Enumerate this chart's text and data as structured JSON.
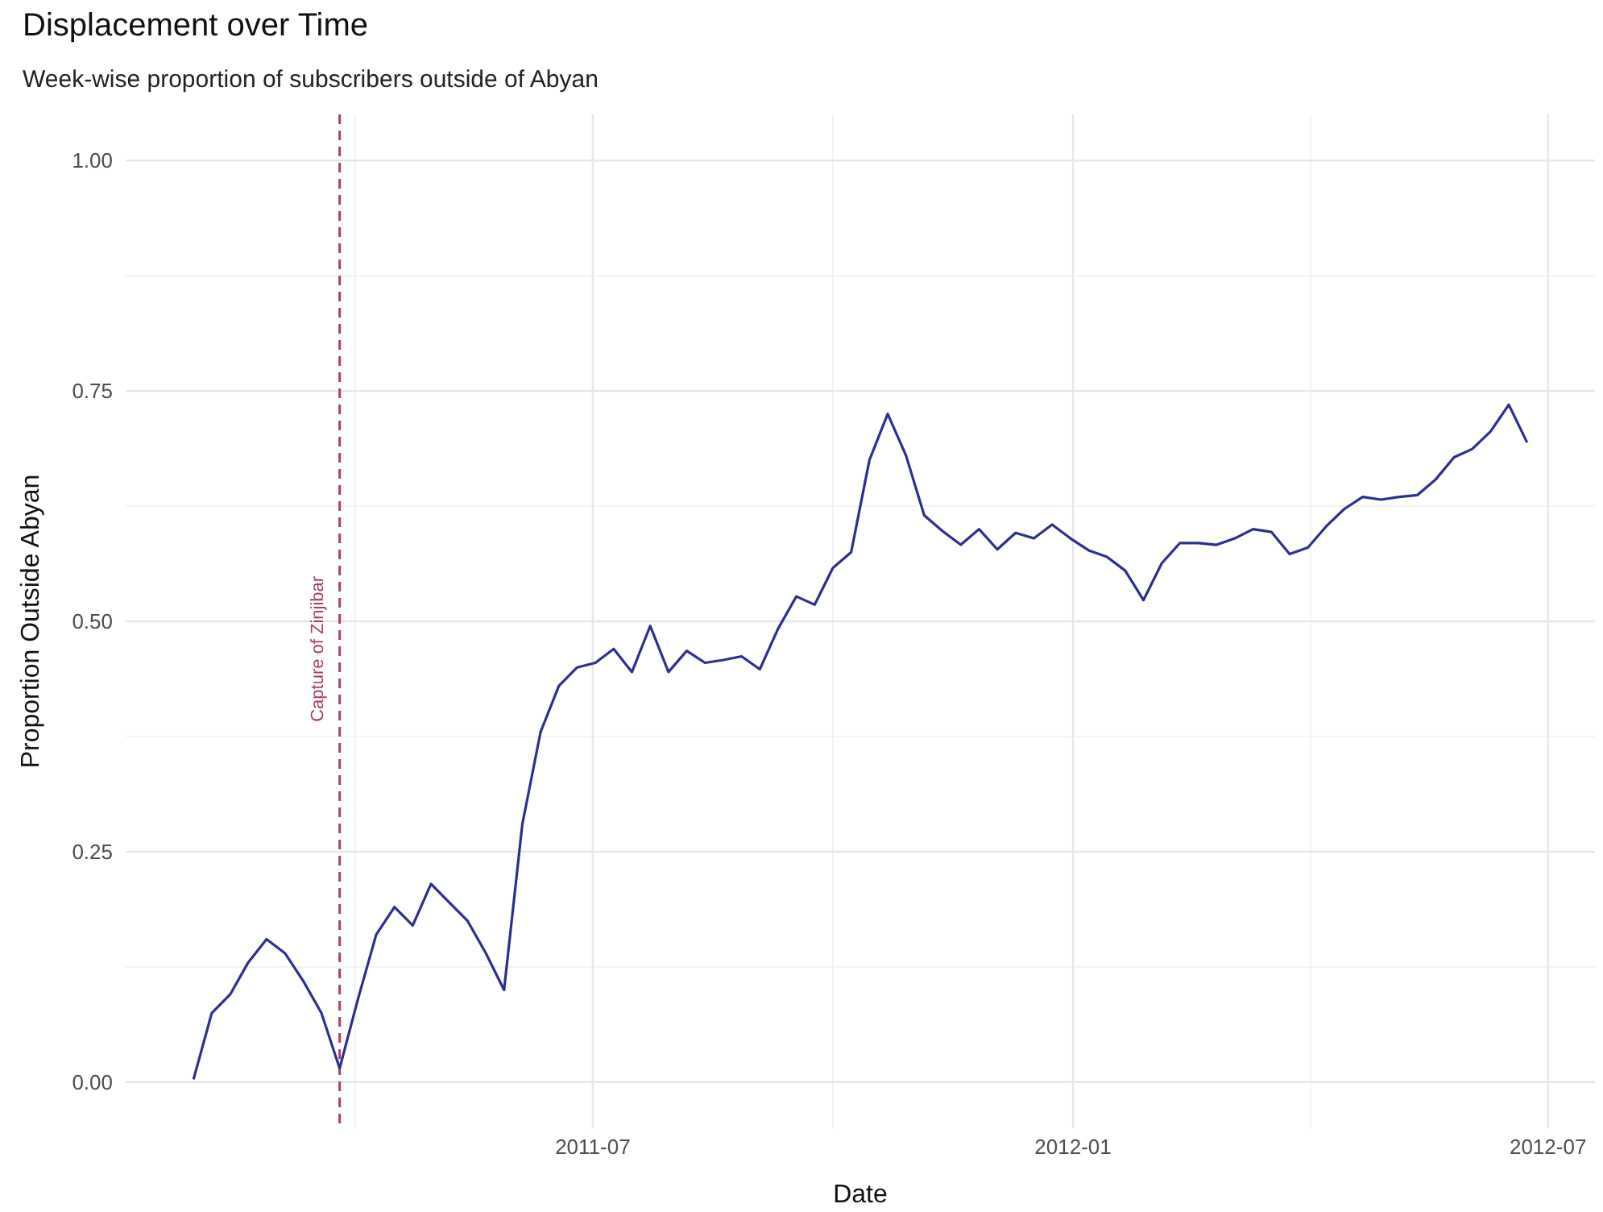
{
  "chart_data": {
    "type": "line",
    "title": "Displacement over Time",
    "subtitle": "Week-wise proportion of subscribers outside of Abyan",
    "xlabel": "Date",
    "ylabel": "Proportion Outside Abyan",
    "xlim": [
      "2011-01-03",
      "2012-07-19"
    ],
    "xticks": [
      "2011-07",
      "2012-01",
      "2012-07"
    ],
    "ylim": [
      -0.05,
      1.05
    ],
    "yticks": [
      {
        "value": 0,
        "label": "0.00"
      },
      {
        "value": 0.25,
        "label": "0.25"
      },
      {
        "value": 0.5,
        "label": "0.50"
      },
      {
        "value": 0.75,
        "label": "0.75"
      },
      {
        "value": 1,
        "label": "1.00"
      }
    ],
    "grid": true,
    "line_style": "solid",
    "ref_lines": [
      {
        "axis": "x",
        "value": "2011-03-26",
        "label": "Capture of Zinjibar",
        "color": "#b03a6a",
        "line_style": "dashed"
      }
    ],
    "series": [
      {
        "color": "#2b2f8f",
        "x": [
          "2011-01-29",
          "2011-02-05",
          "2011-02-12",
          "2011-02-19",
          "2011-02-26",
          "2011-03-05",
          "2011-03-12",
          "2011-03-19",
          "2011-03-26",
          "2011-04-02",
          "2011-04-09",
          "2011-04-16",
          "2011-04-23",
          "2011-04-30",
          "2011-05-07",
          "2011-05-14",
          "2011-05-21",
          "2011-05-28",
          "2011-06-04",
          "2011-06-11",
          "2011-06-18",
          "2011-06-25",
          "2011-07-02",
          "2011-07-09",
          "2011-07-16",
          "2011-07-23",
          "2011-07-30",
          "2011-08-06",
          "2011-08-13",
          "2011-08-20",
          "2011-08-27",
          "2011-09-03",
          "2011-09-10",
          "2011-09-17",
          "2011-09-24",
          "2011-10-01",
          "2011-10-08",
          "2011-10-15",
          "2011-10-22",
          "2011-10-29",
          "2011-11-05",
          "2011-11-12",
          "2011-11-19",
          "2011-11-26",
          "2011-12-03",
          "2011-12-10",
          "2011-12-17",
          "2011-12-24",
          "2011-12-31",
          "2012-01-07",
          "2012-01-14",
          "2012-01-21",
          "2012-01-28",
          "2012-02-04",
          "2012-02-11",
          "2012-02-18",
          "2012-02-25",
          "2012-03-03",
          "2012-03-10",
          "2012-03-17",
          "2012-03-24",
          "2012-03-31",
          "2012-04-07",
          "2012-04-14",
          "2012-04-21",
          "2012-04-28",
          "2012-05-05",
          "2012-05-12",
          "2012-05-19",
          "2012-05-26",
          "2012-06-02",
          "2012-06-09",
          "2012-06-16",
          "2012-06-23"
        ],
        "values": [
          0.003,
          0.075,
          0.095,
          0.13,
          0.155,
          0.14,
          0.11,
          0.075,
          0.015,
          0.09,
          0.16,
          0.19,
          0.17,
          0.215,
          0.195,
          0.175,
          0.14,
          0.1,
          0.28,
          0.38,
          0.43,
          0.45,
          0.455,
          0.47,
          0.445,
          0.495,
          0.445,
          0.468,
          0.455,
          0.458,
          0.462,
          0.448,
          0.492,
          0.527,
          0.518,
          0.558,
          0.575,
          0.675,
          0.725,
          0.68,
          0.615,
          0.598,
          0.583,
          0.6,
          0.578,
          0.596,
          0.59,
          0.605,
          0.59,
          0.577,
          0.57,
          0.555,
          0.523,
          0.563,
          0.585,
          0.585,
          0.583,
          0.59,
          0.6,
          0.597,
          0.573,
          0.58,
          0.603,
          0.622,
          0.635,
          0.632,
          0.635,
          0.637,
          0.654,
          0.678,
          0.687,
          0.706,
          0.735,
          0.694
        ]
      }
    ]
  }
}
